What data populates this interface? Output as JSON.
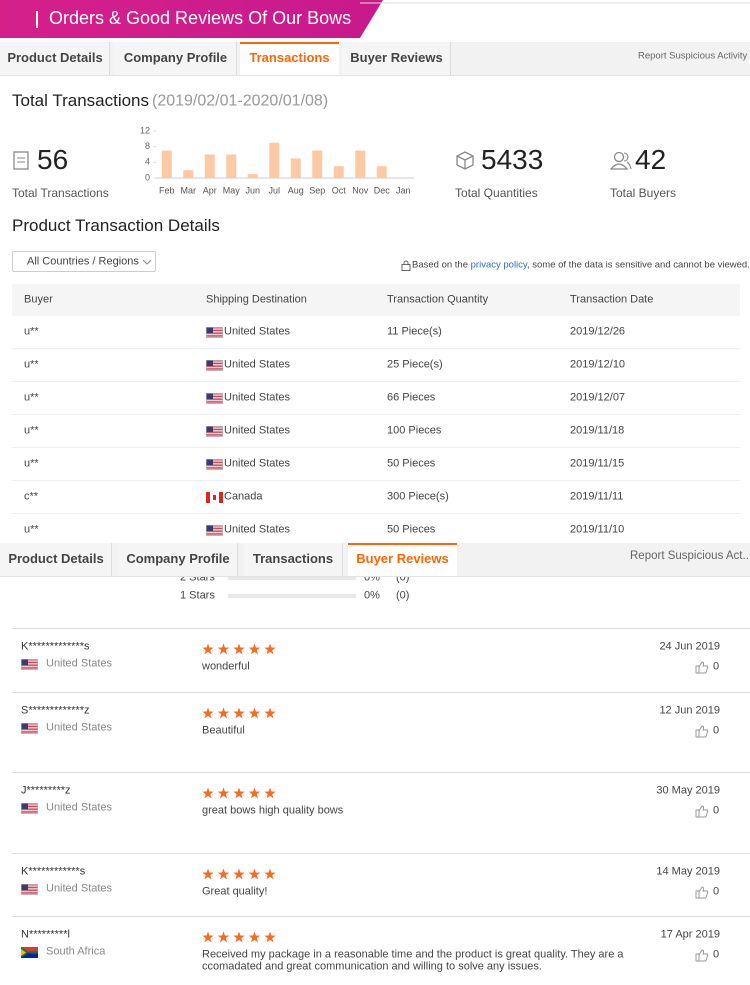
{
  "banner": {
    "title": "Orders & Good Reviews Of Our Bows"
  },
  "tabs_top": [
    "Product Details",
    "Company Profile",
    "Transactions",
    "Buyer Reviews"
  ],
  "report_top": "Report Suspicious Activity",
  "transactions": {
    "heading": "Total Transactions",
    "period": "(2019/02/01-2020/01/08)",
    "stats": [
      {
        "value": 56,
        "label": "Total Transactions"
      },
      {
        "value": 5433,
        "label": "Total Quantities"
      },
      {
        "value": 42,
        "label": "Total Buyers"
      }
    ],
    "chart": {
      "type": "bar",
      "categories": [
        "Feb",
        "Mar",
        "Apr",
        "May",
        "Jun",
        "Jul",
        "Aug",
        "Sep",
        "Oct",
        "Nov",
        "Dec",
        "Jan"
      ],
      "values": [
        7,
        2,
        6,
        6,
        1,
        9,
        5,
        7,
        3,
        7,
        3,
        0
      ],
      "color": "#fbcaa5",
      "ylim": [
        0,
        12
      ],
      "yticks": [
        0,
        4,
        8,
        12
      ]
    }
  },
  "details": {
    "heading": "Product Transaction Details",
    "filter": "All Countries / Regions",
    "note": {
      "before": "Based on the ",
      "link": "privacy policy",
      "after": ", some of the data is sensitive and cannot be viewed."
    },
    "table": {
      "headers": [
        "Buyer",
        "Shipping Destination",
        "Transaction Quantity",
        "Transaction Date"
      ],
      "rows": [
        [
          "u**",
          "United States",
          "11 Piece(s)",
          "2019/12/26"
        ],
        [
          "u**",
          "United States",
          "25 Piece(s)",
          "2019/12/10"
        ],
        [
          "u**",
          "United States",
          "66 Pieces",
          "2019/12/07"
        ],
        [
          "u**",
          "United States",
          "100 Pieces",
          "2019/11/18"
        ],
        [
          "u**",
          "United States",
          "50 Pieces",
          "2019/11/15"
        ],
        [
          "c**",
          "Canada",
          "300 Piece(s)",
          "2019/11/11"
        ],
        [
          "u**",
          "United States",
          "50 Pieces",
          "2019/11/10"
        ]
      ]
    }
  },
  "tabs_bottom": [
    "Product Details",
    "Company Profile",
    "Transactions",
    "Buyer Reviews"
  ],
  "report_bottom": "Report Suspicious Act...",
  "star_rows": [
    {
      "label": "2 Stars",
      "percent": "0%",
      "count": "(0)"
    },
    {
      "label": "1 Stars",
      "percent": "0%",
      "count": "(0)"
    }
  ],
  "reviews": [
    {
      "name": "K*************s",
      "country": "United States",
      "rating": 5,
      "text": [
        "wonderful"
      ],
      "date": "24 Jun 2019",
      "likes": 0
    },
    {
      "name": "S*************z",
      "country": "United States",
      "rating": 5,
      "text": [
        "Beautiful"
      ],
      "date": "12 Jun 2019",
      "likes": 0
    },
    {
      "name": "J*********z",
      "country": "United States",
      "rating": 5,
      "text": [
        "great bows high quality bows"
      ],
      "date": "30 May 2019",
      "likes": 0
    },
    {
      "name": "K************s",
      "country": "United States",
      "rating": 5,
      "text": [
        "Great quality!"
      ],
      "date": "14 May 2019",
      "likes": 0
    },
    {
      "name": "N*********l",
      "country": "South Africa",
      "rating": 5,
      "text": [
        "Received my package in a reasonable time and the product is great quality. They are a",
        "ccomadated and great communication and willing to solve any issues."
      ],
      "date": "17 Apr 2019",
      "likes": 0
    }
  ]
}
